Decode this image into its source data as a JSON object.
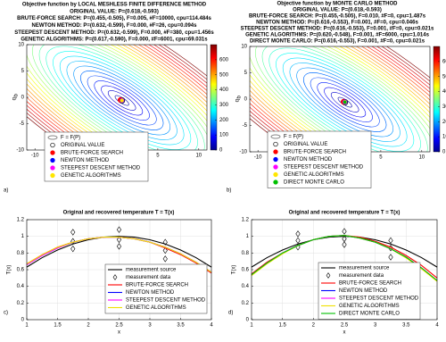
{
  "chart_data": [
    {
      "type": "contour",
      "panel_label": "a)",
      "title": [
        "Objective function by LOCAL MESHLESS FINITE DIFFERENCE METHOD",
        "ORIGINAL VALUE: P=(0.618,-0.593)",
        "BRUTE-FORCE SEARCH: P=(0.455,-0.505), F=0.005, #F=10000, cpu=114.484s",
        "NEWTON METHOD: P=(0.632,-0.599), F=0.000, #F=26, cpu=0.094s",
        "STEEPEST DESCENT METHOD: P=(0.632,-0.599), F=0.000, #F=380, cpu=1.456s",
        "GENETIC ALGORITHMS: P=(0.617,-0.590), F=0.000, #F=6001, cpu=69.031s"
      ],
      "xlabel": "T",
      "xlabel_subscript": "a",
      "ylabel": "q",
      "ylabel_subscript": "b",
      "xlim": [
        -11,
        11
      ],
      "ylim": [
        -10,
        10
      ],
      "xticks": [
        -10,
        -5,
        0,
        5,
        10
      ],
      "yticks": [
        -10,
        -5,
        0,
        5,
        10
      ],
      "clim": [
        0,
        700
      ],
      "cticks": [
        0,
        100,
        200,
        300,
        400,
        500,
        600
      ],
      "contour_label": "F = F(P)",
      "series": [
        {
          "name": "ORIGINAL VALUE",
          "color": "#000000",
          "filled": false,
          "x": [
            0.618
          ],
          "values": [
            -0.593
          ]
        },
        {
          "name": "BRUTE-FORCE SEARCH",
          "color": "#ff0000",
          "filled": true,
          "x": [
            0.455
          ],
          "values": [
            -0.505
          ]
        },
        {
          "name": "NEWTON METHOD",
          "color": "#0000ff",
          "filled": true,
          "x": [
            0.632
          ],
          "values": [
            -0.599
          ]
        },
        {
          "name": "STEEPEST DESCENT METHOD",
          "color": "#ff00ff",
          "filled": true,
          "x": [
            0.632
          ],
          "values": [
            -0.599
          ]
        },
        {
          "name": "GENETIC ALGORITHMS",
          "color": "#ffe600",
          "filled": true,
          "x": [
            0.617
          ],
          "values": [
            -0.59
          ]
        }
      ]
    },
    {
      "type": "contour",
      "panel_label": "b)",
      "title": [
        "Objective function by  MONTE CARLO METHOD",
        "ORIGINAL VALUE: P=(0.618,-0.593)",
        "BRUTE-FORCE SEARCH: P=(0.455,-0.505), F=0.010, #F=0, cpu=1.487s",
        "NEWTON METHOD: P=(0.616,-0.553), F=0.001, #F=0, cpu=0.046s",
        "STEEPEST DESCENT METHOD: P=(0.616,-0.553), F=0.001, #F=0, cpu=0.021s",
        "GENETIC ALGORITHMS: P=(0.620,-0.548), F=0.001, #F=6000, cpu=1.014s",
        "DIRECT MONTE CARLO: P=(0.616,-0.553), F=0.001, #F=0, cpu=0.021s"
      ],
      "xlabel": "T",
      "xlabel_subscript": "a",
      "ylabel": "q",
      "ylabel_subscript": "b",
      "xlim": [
        -11,
        11
      ],
      "ylim": [
        -10,
        10
      ],
      "xticks": [
        -10,
        -5,
        0,
        5,
        10
      ],
      "yticks": [
        -10,
        -5,
        0,
        5,
        10
      ],
      "clim": [
        0,
        700
      ],
      "cticks": [
        0,
        100,
        200,
        300,
        400,
        500,
        600
      ],
      "contour_label": "F = F(P)",
      "series": [
        {
          "name": "ORIGINAL VALUE",
          "color": "#000000",
          "filled": false,
          "x": [
            0.618
          ],
          "values": [
            -0.593
          ]
        },
        {
          "name": "BRUTE-FORCE SEARCH",
          "color": "#ff0000",
          "filled": true,
          "x": [
            0.455
          ],
          "values": [
            -0.505
          ]
        },
        {
          "name": "NEWTON METHOD",
          "color": "#0000ff",
          "filled": true,
          "x": [
            0.616
          ],
          "values": [
            -0.553
          ]
        },
        {
          "name": "STEEPEST DESCENT METHOD",
          "color": "#ff00ff",
          "filled": true,
          "x": [
            0.616
          ],
          "values": [
            -0.553
          ]
        },
        {
          "name": "GENETIC ALGORITHMS",
          "color": "#ffe600",
          "filled": true,
          "x": [
            0.62
          ],
          "values": [
            -0.548
          ]
        },
        {
          "name": "DIRECT MONTE CARLO",
          "color": "#00c000",
          "filled": true,
          "x": [
            0.616
          ],
          "values": [
            -0.553
          ]
        }
      ]
    },
    {
      "type": "line",
      "panel_label": "c)",
      "title": "Original and recovered temperature T = T(x)",
      "xlabel": "x",
      "ylabel": "T(x)",
      "xlim": [
        1,
        4
      ],
      "ylim": [
        0,
        1.2
      ],
      "xticks": [
        1,
        1.5,
        2,
        2.5,
        3,
        3.5,
        4
      ],
      "yticks": [
        0,
        0.2,
        0.4,
        0.6,
        0.8,
        1,
        1.2
      ],
      "grid": true,
      "x": [
        1,
        1.25,
        1.5,
        1.75,
        2,
        2.25,
        2.5,
        2.75,
        3,
        3.25,
        3.5,
        3.75,
        4
      ],
      "series": [
        {
          "name": "measurement source",
          "color": "#000000",
          "values": [
            0.631,
            0.744,
            0.836,
            0.908,
            0.959,
            0.99,
            1,
            0.99,
            0.959,
            0.908,
            0.836,
            0.744,
            0.631
          ]
        },
        {
          "name": "measurement data",
          "color": "#000000",
          "marker": "diamond",
          "x": [
            1.75,
            1.75,
            1.75,
            2.5,
            2.5,
            2.5,
            3.25,
            3.25,
            3.25
          ],
          "values": [
            1.05,
            0.94,
            0.85,
            1.08,
            0.96,
            0.88,
            0.93,
            0.83,
            0.73
          ]
        },
        {
          "name": "BRUTE-FORCE SEARCH",
          "color": "#ff0000",
          "values": [
            0.67,
            0.78,
            0.87,
            0.93,
            0.97,
            0.99,
            0.99,
            0.97,
            0.93,
            0.86,
            0.78,
            0.68,
            0.56
          ]
        },
        {
          "name": "NEWTON METHOD",
          "color": "#0000ff",
          "values": [
            0.66,
            0.77,
            0.86,
            0.93,
            0.97,
            0.99,
            0.99,
            0.97,
            0.93,
            0.87,
            0.79,
            0.69,
            0.57
          ]
        },
        {
          "name": "STEEPEST DESCENT METHOD",
          "color": "#ff00ff",
          "values": [
            0.66,
            0.77,
            0.86,
            0.93,
            0.97,
            0.99,
            0.99,
            0.97,
            0.93,
            0.87,
            0.79,
            0.69,
            0.57
          ]
        },
        {
          "name": "GENETIC ALGORITHMS",
          "color": "#f0e000",
          "values": [
            0.67,
            0.78,
            0.87,
            0.93,
            0.97,
            0.99,
            0.99,
            0.97,
            0.93,
            0.87,
            0.79,
            0.69,
            0.57
          ]
        }
      ]
    },
    {
      "type": "line",
      "panel_label": "d)",
      "title": "Original and recovered temperature T = T(x)",
      "xlabel": "x",
      "ylabel": "T(x)",
      "xlim": [
        1,
        4
      ],
      "ylim": [
        0,
        1.2
      ],
      "xticks": [
        1,
        1.5,
        2,
        2.5,
        3,
        3.5,
        4
      ],
      "yticks": [
        0,
        0.2,
        0.4,
        0.6,
        0.8,
        1,
        1.2
      ],
      "grid": true,
      "x": [
        1,
        1.25,
        1.5,
        1.75,
        2,
        2.25,
        2.5,
        2.75,
        3,
        3.25,
        3.5,
        3.75,
        4
      ],
      "series": [
        {
          "name": "measurement source",
          "color": "#000000",
          "values": [
            0.631,
            0.744,
            0.836,
            0.908,
            0.959,
            0.99,
            1,
            0.99,
            0.959,
            0.908,
            0.836,
            0.744,
            0.631
          ]
        },
        {
          "name": "measurement data",
          "color": "#000000",
          "marker": "diamond",
          "x": [
            1.75,
            1.75,
            1.75,
            2.5,
            2.5,
            2.5,
            3.25,
            3.25,
            3.25
          ],
          "values": [
            1.03,
            0.95,
            0.87,
            1.06,
            0.97,
            0.9,
            0.95,
            0.86,
            0.75
          ]
        },
        {
          "name": "BRUTE-FORCE SEARCH",
          "color": "#ff0000",
          "values": [
            0.55,
            0.69,
            0.8,
            0.89,
            0.96,
            1,
            1.01,
            0.99,
            0.94,
            0.87,
            0.77,
            0.65,
            0.5
          ]
        },
        {
          "name": "NEWTON METHOD",
          "color": "#0000ff",
          "values": [
            0.54,
            0.68,
            0.8,
            0.89,
            0.96,
            1,
            1.01,
            0.98,
            0.93,
            0.85,
            0.75,
            0.62,
            0.47
          ]
        },
        {
          "name": "STEEPEST DESCENT METHOD",
          "color": "#ff00ff",
          "values": [
            0.54,
            0.68,
            0.8,
            0.89,
            0.96,
            1,
            1.01,
            0.98,
            0.93,
            0.85,
            0.75,
            0.62,
            0.47
          ]
        },
        {
          "name": "GENETIC ALGORITHMS",
          "color": "#f0e000",
          "values": [
            0.53,
            0.67,
            0.79,
            0.89,
            0.96,
            1,
            1.01,
            0.98,
            0.93,
            0.85,
            0.74,
            0.61,
            0.46
          ]
        },
        {
          "name": "DIRECT MONTE CARLO",
          "color": "#00c000",
          "values": [
            0.54,
            0.68,
            0.8,
            0.89,
            0.96,
            1,
            1.01,
            0.98,
            0.93,
            0.85,
            0.75,
            0.62,
            0.47
          ]
        }
      ]
    }
  ]
}
